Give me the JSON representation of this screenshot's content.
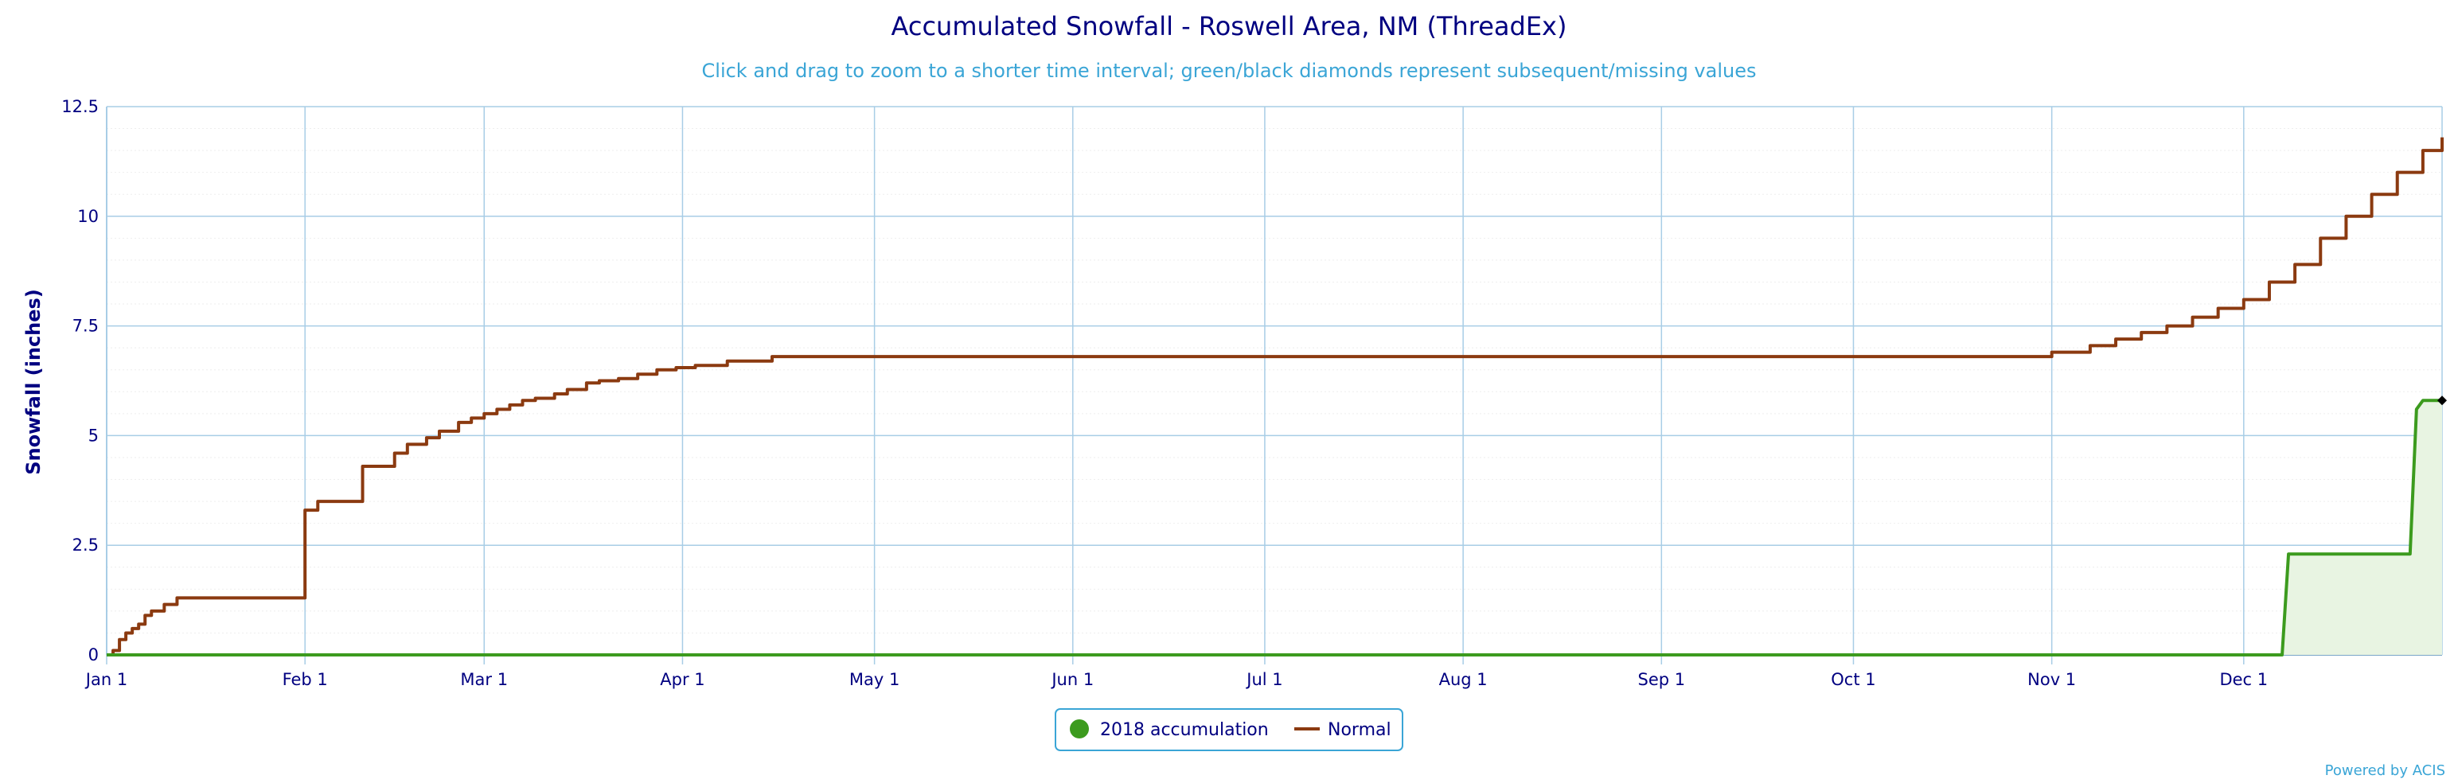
{
  "chart_data": {
    "type": "line",
    "title": "Accumulated Snowfall - Roswell Area, NM (ThreadEx)",
    "subtitle": "Click and drag to zoom to a shorter time interval; green/black diamonds represent subsequent/missing values",
    "ylabel": "Snowfall (inches)",
    "xlabel": "",
    "ylim": [
      0,
      12.5
    ],
    "xlim": [
      0,
      365
    ],
    "y_ticks": [
      0,
      2.5,
      5,
      7.5,
      10,
      12.5
    ],
    "y_tick_labels": [
      "0",
      "2.5",
      "5",
      "7.5",
      "10",
      "12.5"
    ],
    "x_ticks": [
      {
        "label": "Jan 1",
        "day": 0
      },
      {
        "label": "Feb 1",
        "day": 31
      },
      {
        "label": "Mar 1",
        "day": 59
      },
      {
        "label": "Apr 1",
        "day": 90
      },
      {
        "label": "May 1",
        "day": 120
      },
      {
        "label": "Jun 1",
        "day": 151
      },
      {
        "label": "Jul 1",
        "day": 181
      },
      {
        "label": "Aug 1",
        "day": 212
      },
      {
        "label": "Sep 1",
        "day": 243
      },
      {
        "label": "Oct 1",
        "day": 273
      },
      {
        "label": "Nov 1",
        "day": 304
      },
      {
        "label": "Dec 1",
        "day": 334
      }
    ],
    "grid": true,
    "legend": "bottom-center",
    "series": [
      {
        "name": "2018 accumulation",
        "color": "#3c9b1e",
        "fill": "#e8f4e2",
        "marker": "circle",
        "x": [
          0,
          340,
          341,
          360,
          361,
          362,
          365
        ],
        "y": [
          0,
          0,
          2.3,
          2.3,
          5.6,
          5.8,
          5.8
        ]
      },
      {
        "name": "Normal",
        "color": "#8b3a10",
        "marker": "line",
        "x": [
          0,
          1,
          2,
          3,
          4,
          5,
          6,
          7,
          9,
          11,
          31,
          33,
          40,
          45,
          47,
          50,
          52,
          55,
          57,
          59,
          61,
          63,
          65,
          67,
          70,
          72,
          75,
          77,
          80,
          83,
          86,
          89,
          92,
          97,
          104,
          295,
          304,
          310,
          314,
          318,
          322,
          326,
          330,
          334,
          338,
          342,
          346,
          350,
          354,
          358,
          362,
          365
        ],
        "y": [
          0,
          0.1,
          0.35,
          0.5,
          0.6,
          0.7,
          0.9,
          1.0,
          1.15,
          1.3,
          3.3,
          3.5,
          4.3,
          4.6,
          4.8,
          4.95,
          5.1,
          5.3,
          5.4,
          5.5,
          5.6,
          5.7,
          5.8,
          5.85,
          5.95,
          6.05,
          6.2,
          6.25,
          6.3,
          6.4,
          6.5,
          6.55,
          6.6,
          6.7,
          6.8,
          6.8,
          6.9,
          7.05,
          7.2,
          7.35,
          7.5,
          7.7,
          7.9,
          8.1,
          8.5,
          8.9,
          9.5,
          10.0,
          10.5,
          11.0,
          11.5,
          11.8
        ]
      }
    ],
    "missing_marker": {
      "x": 365,
      "y": 5.8,
      "color": "#000000"
    },
    "credit": "Powered by ACIS"
  }
}
